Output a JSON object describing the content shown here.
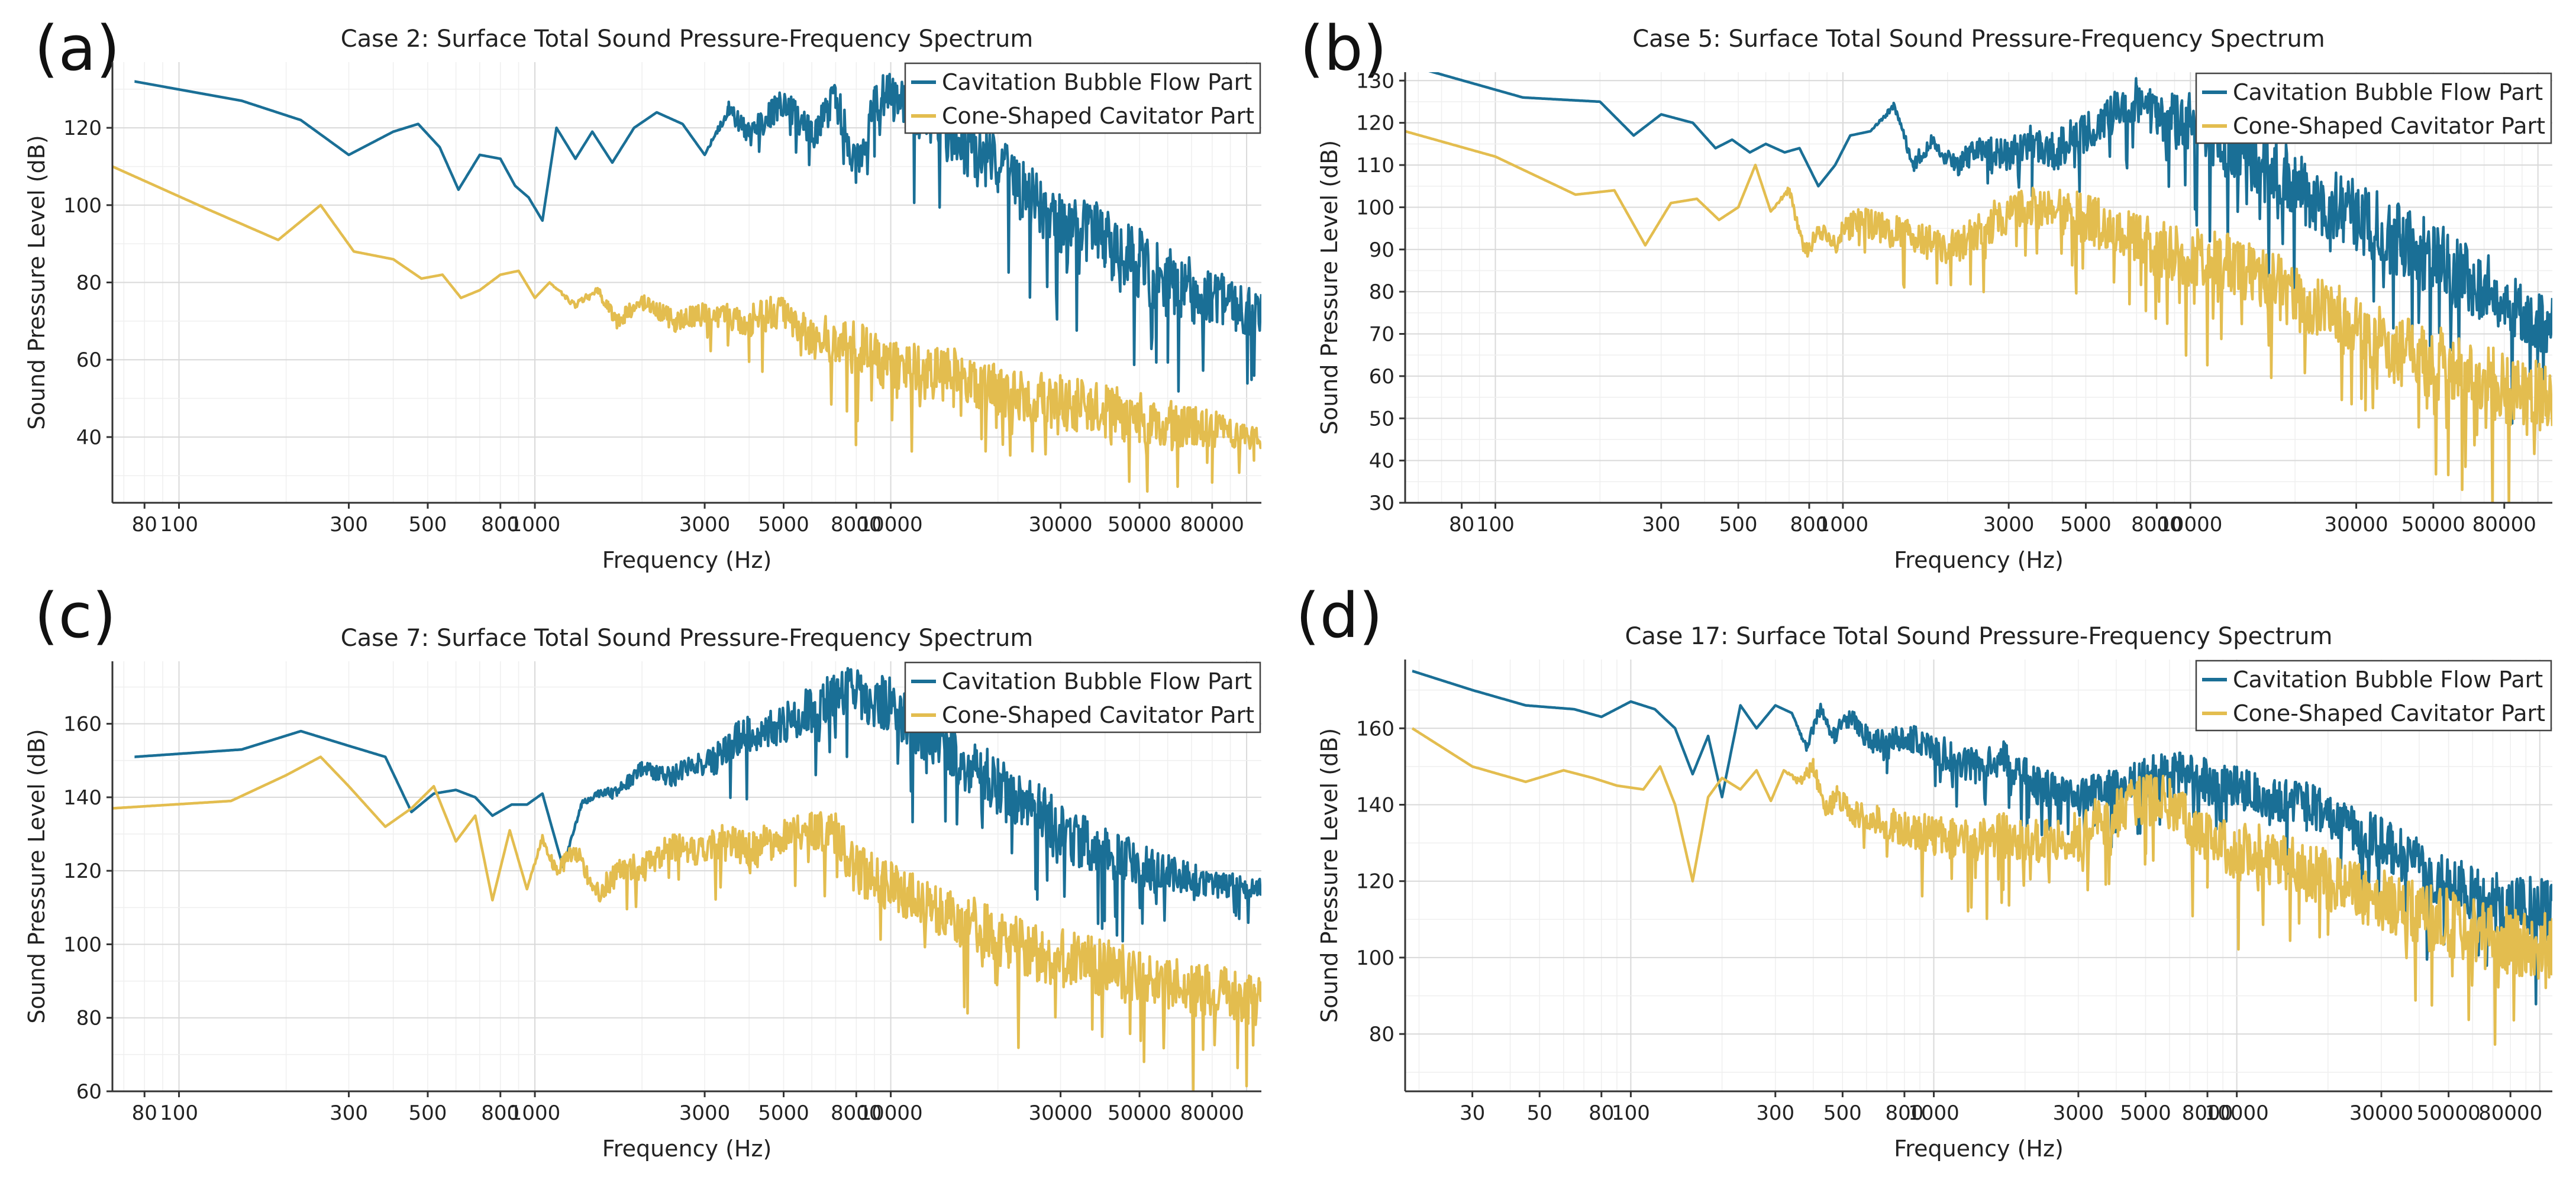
{
  "figure": {
    "panels": [
      {
        "id": "a",
        "label": "(a)"
      },
      {
        "id": "b",
        "label": "(b)"
      },
      {
        "id": "c",
        "label": "(c)"
      },
      {
        "id": "d",
        "label": "(d)"
      }
    ]
  },
  "chart_data": [
    {
      "type": "line",
      "panel": "(a)",
      "title": "Case 2: Surface Total Sound Pressure-Frequency Spectrum",
      "xlabel": "Frequency (Hz)",
      "ylabel": "Sound Pressure Level (dB)",
      "xscale": "log",
      "xlim": [
        65,
        110000
      ],
      "ylim": [
        23,
        137
      ],
      "xticks": [
        80,
        100,
        300,
        500,
        800,
        1000,
        3000,
        5000,
        8000,
        10000,
        30000,
        50000,
        80000
      ],
      "yticks": [
        40,
        60,
        80,
        100,
        120
      ],
      "legend_position": "top-right",
      "series": [
        {
          "name": "Cavitation Bubble Flow Part",
          "color": "#1a6f96",
          "x": [
            75,
            150,
            220,
            300,
            400,
            470,
            540,
            610,
            700,
            800,
            880,
            960,
            1050,
            1150,
            1300,
            1450,
            1650,
            1900,
            2200,
            2600,
            3000,
            3500,
            4000,
            5000,
            6000,
            7000,
            8000,
            9000,
            10000,
            12000,
            15000,
            20000,
            30000,
            40000,
            50000,
            60000,
            80000,
            105000
          ],
          "values": [
            132,
            127,
            122,
            113,
            119,
            121,
            115,
            104,
            113,
            112,
            105,
            102,
            96,
            120,
            112,
            119,
            111,
            120,
            124,
            121,
            113,
            125,
            118,
            127,
            118,
            128,
            110,
            126,
            130,
            124,
            118,
            110,
            95,
            90,
            84,
            80,
            76,
            72
          ],
          "noise": [
            0,
            0,
            0,
            0,
            0,
            0,
            0,
            0,
            0,
            0,
            0,
            0,
            0,
            0,
            0,
            0,
            0,
            0,
            0,
            0,
            0,
            2,
            3,
            4,
            4,
            5,
            5,
            5,
            6,
            7,
            8,
            8,
            9,
            10,
            10,
            9,
            8,
            6
          ]
        },
        {
          "name": "Cone-Shaped Cavitator Part",
          "color": "#e3bd4f",
          "x": [
            65,
            120,
            190,
            250,
            310,
            400,
            480,
            550,
            620,
            700,
            800,
            900,
            1000,
            1100,
            1300,
            1500,
            1700,
            2000,
            2500,
            3000,
            4000,
            5000,
            6000,
            7000,
            8000,
            10000,
            15000,
            20000,
            30000,
            50000,
            80000,
            105000
          ],
          "values": [
            110,
            99,
            91,
            100,
            88,
            86,
            81,
            82,
            76,
            78,
            82,
            83,
            76,
            80,
            74,
            78,
            70,
            75,
            70,
            72,
            70,
            73,
            66,
            65,
            63,
            58,
            56,
            52,
            49,
            45,
            42,
            40
          ],
          "noise": [
            0,
            0,
            0,
            0,
            0,
            0,
            0,
            0,
            0,
            0,
            0,
            0,
            0,
            0,
            1,
            1,
            2,
            2,
            3,
            3,
            4,
            5,
            6,
            6,
            7,
            7,
            7,
            7,
            7,
            7,
            5,
            3
          ]
        }
      ]
    },
    {
      "type": "line",
      "panel": "(b)",
      "title": "Case 5: Surface Total Sound Pressure-Frequency Spectrum",
      "xlabel": "Frequency (Hz)",
      "ylabel": "Sound Pressure Level (dB)",
      "xscale": "log",
      "xlim": [
        55,
        110000
      ],
      "ylim": [
        30,
        132
      ],
      "xticks": [
        80,
        100,
        300,
        500,
        800,
        1000,
        3000,
        5000,
        8000,
        10000,
        30000,
        50000,
        80000
      ],
      "yticks": [
        30,
        40,
        50,
        60,
        70,
        80,
        90,
        100,
        110,
        120,
        130
      ],
      "legend_position": "top-right",
      "series": [
        {
          "name": "Cavitation Bubble Flow Part",
          "color": "#1a6f96",
          "x": [
            60,
            120,
            200,
            250,
            300,
            370,
            430,
            480,
            540,
            600,
            680,
            750,
            850,
            950,
            1050,
            1200,
            1400,
            1600,
            1800,
            2100,
            2500,
            3000,
            3500,
            4000,
            5000,
            6000,
            7000,
            8000,
            10000,
            13000,
            17000,
            22000,
            30000,
            40000,
            55000,
            75000,
            105000
          ],
          "values": [
            133,
            126,
            125,
            117,
            122,
            120,
            114,
            116,
            113,
            115,
            113,
            114,
            105,
            110,
            117,
            118,
            124,
            110,
            116,
            110,
            114,
            112,
            116,
            113,
            118,
            122,
            126,
            122,
            120,
            114,
            110,
            103,
            98,
            92,
            86,
            80,
            72
          ],
          "noise": [
            0,
            0,
            0,
            0,
            0,
            0,
            0,
            0,
            0,
            0,
            0,
            0,
            0,
            0,
            0,
            0,
            1,
            2,
            2,
            3,
            3,
            4,
            4,
            5,
            5,
            5,
            6,
            6,
            7,
            8,
            8,
            8,
            9,
            9,
            9,
            8,
            7
          ]
        },
        {
          "name": "Cone-Shaped Cavitator Part",
          "color": "#e3bd4f",
          "x": [
            55,
            100,
            170,
            220,
            270,
            320,
            380,
            440,
            500,
            560,
            620,
            700,
            780,
            850,
            950,
            1100,
            1300,
            1600,
            2000,
            2500,
            3000,
            4000,
            5000,
            6000,
            7000,
            8000,
            10000,
            13000,
            17000,
            22000,
            30000,
            40000,
            55000,
            75000,
            105000
          ],
          "values": [
            118,
            112,
            103,
            104,
            91,
            101,
            102,
            97,
            100,
            110,
            99,
            104,
            89,
            94,
            92,
            97,
            95,
            93,
            90,
            95,
            99,
            101,
            97,
            95,
            93,
            90,
            88,
            87,
            82,
            76,
            72,
            66,
            62,
            58,
            55
          ],
          "noise": [
            0,
            0,
            0,
            0,
            0,
            0,
            0,
            0,
            0,
            0,
            0,
            1,
            2,
            2,
            3,
            3,
            4,
            4,
            4,
            5,
            5,
            5,
            6,
            6,
            6,
            7,
            7,
            7,
            8,
            8,
            8,
            9,
            9,
            9,
            8
          ]
        }
      ]
    },
    {
      "type": "line",
      "panel": "(c)",
      "title": "Case 7: Surface Total Sound Pressure-Frequency Spectrum",
      "xlabel": "Frequency (Hz)",
      "ylabel": "Sound Pressure Level (dB)",
      "xscale": "log",
      "xlim": [
        65,
        110000
      ],
      "ylim": [
        60,
        177
      ],
      "xticks": [
        80,
        100,
        300,
        500,
        800,
        1000,
        3000,
        5000,
        8000,
        10000,
        30000,
        50000,
        80000
      ],
      "yticks": [
        60,
        80,
        100,
        120,
        140,
        160
      ],
      "legend_position": "top-right",
      "series": [
        {
          "name": "Cavitation Bubble Flow Part",
          "color": "#1a6f96",
          "x": [
            75,
            150,
            220,
            300,
            380,
            450,
            520,
            600,
            680,
            760,
            860,
            950,
            1050,
            1200,
            1350,
            1500,
            1700,
            2000,
            2400,
            2800,
            3200,
            3800,
            4500,
            5500,
            6500,
            7500,
            8500,
            10000,
            12000,
            15000,
            20000,
            25000,
            30000,
            40000,
            55000,
            75000,
            105000
          ],
          "values": [
            151,
            153,
            158,
            154,
            151,
            136,
            141,
            142,
            140,
            135,
            138,
            138,
            141,
            121,
            138,
            141,
            141,
            148,
            145,
            149,
            150,
            157,
            158,
            162,
            166,
            170,
            167,
            165,
            159,
            152,
            143,
            138,
            130,
            125,
            120,
            117,
            115
          ],
          "noise": [
            0,
            0,
            0,
            0,
            0,
            0,
            0,
            0,
            0,
            0,
            0,
            0,
            0,
            0,
            1,
            1,
            2,
            2,
            3,
            3,
            4,
            5,
            5,
            6,
            7,
            7,
            7,
            8,
            8,
            8,
            8,
            8,
            8,
            7,
            6,
            4,
            3
          ]
        },
        {
          "name": "Cone-Shaped Cavitator Part",
          "color": "#e3bd4f",
          "x": [
            65,
            140,
            200,
            250,
            300,
            380,
            450,
            520,
            600,
            680,
            760,
            850,
            950,
            1050,
            1150,
            1300,
            1500,
            1750,
            2000,
            2400,
            2800,
            3300,
            4000,
            5000,
            6000,
            7000,
            8000,
            9000,
            10000,
            13000,
            18000,
            25000,
            35000,
            50000,
            70000,
            105000
          ],
          "values": [
            137,
            139,
            146,
            151,
            143,
            132,
            137,
            143,
            128,
            135,
            112,
            131,
            115,
            129,
            120,
            125,
            114,
            121,
            120,
            127,
            125,
            128,
            126,
            129,
            131,
            130,
            120,
            118,
            116,
            110,
            104,
            98,
            95,
            91,
            88,
            85
          ],
          "noise": [
            0,
            0,
            0,
            0,
            0,
            0,
            0,
            0,
            0,
            0,
            0,
            0,
            0,
            1,
            2,
            3,
            3,
            4,
            4,
            4,
            4,
            5,
            5,
            5,
            5,
            6,
            7,
            7,
            7,
            7,
            8,
            8,
            8,
            8,
            8,
            7
          ]
        }
      ]
    },
    {
      "type": "line",
      "panel": "(d)",
      "title": "Case 17: Surface Total Sound Pressure-Frequency Spectrum",
      "xlabel": "Frequency (Hz)",
      "ylabel": "Sound Pressure Level (dB)",
      "xscale": "log",
      "xlim": [
        18,
        110000
      ],
      "ylim": [
        65,
        178
      ],
      "xticks": [
        30,
        50,
        80,
        100,
        300,
        500,
        800,
        1000,
        3000,
        5000,
        8000,
        10000,
        30000,
        50000,
        80000
      ],
      "yticks": [
        80,
        100,
        120,
        140,
        160
      ],
      "legend_position": "top-right",
      "series": [
        {
          "name": "Cavitation Bubble Flow Part",
          "color": "#1a6f96",
          "x": [
            19,
            30,
            45,
            65,
            80,
            100,
            120,
            140,
            160,
            180,
            200,
            230,
            260,
            300,
            340,
            380,
            420,
            470,
            520,
            600,
            700,
            800,
            1000,
            1300,
            1700,
            2200,
            3000,
            4000,
            5000,
            6500,
            8000,
            10000,
            13000,
            17000,
            22000,
            30000,
            40000,
            55000,
            75000,
            105000
          ],
          "values": [
            175,
            170,
            166,
            165,
            163,
            167,
            165,
            160,
            148,
            158,
            142,
            166,
            160,
            166,
            164,
            155,
            165,
            158,
            163,
            158,
            155,
            158,
            155,
            150,
            152,
            145,
            142,
            145,
            147,
            148,
            146,
            144,
            142,
            140,
            136,
            130,
            124,
            118,
            114,
            112
          ],
          "noise": [
            0,
            0,
            0,
            0,
            0,
            0,
            0,
            0,
            0,
            0,
            0,
            0,
            0,
            0,
            0,
            1,
            2,
            2,
            3,
            3,
            4,
            4,
            4,
            5,
            5,
            5,
            5,
            5,
            6,
            6,
            6,
            6,
            6,
            6,
            6,
            7,
            7,
            8,
            9,
            9
          ]
        },
        {
          "name": "Cone-Shaped Cavitator Part",
          "color": "#e3bd4f",
          "x": [
            19,
            30,
            45,
            60,
            75,
            90,
            110,
            125,
            140,
            160,
            180,
            200,
            230,
            260,
            290,
            320,
            360,
            400,
            440,
            480,
            550,
            650,
            800,
            1000,
            1300,
            1700,
            2200,
            3000,
            4000,
            5000,
            6000,
            8000,
            10000,
            14000,
            20000,
            30000,
            45000,
            65000,
            85000,
            105000
          ],
          "values": [
            160,
            150,
            146,
            149,
            147,
            145,
            144,
            150,
            140,
            120,
            142,
            147,
            144,
            149,
            141,
            149,
            146,
            150,
            138,
            142,
            138,
            136,
            134,
            132,
            130,
            132,
            130,
            132,
            138,
            142,
            140,
            132,
            128,
            126,
            120,
            115,
            110,
            106,
            104,
            103
          ],
          "noise": [
            0,
            0,
            0,
            0,
            0,
            0,
            0,
            0,
            0,
            0,
            0,
            0,
            0,
            0,
            0,
            0,
            1,
            2,
            3,
            3,
            4,
            4,
            5,
            5,
            6,
            6,
            6,
            7,
            7,
            7,
            7,
            7,
            8,
            8,
            8,
            8,
            9,
            9,
            9,
            9
          ]
        }
      ]
    }
  ]
}
